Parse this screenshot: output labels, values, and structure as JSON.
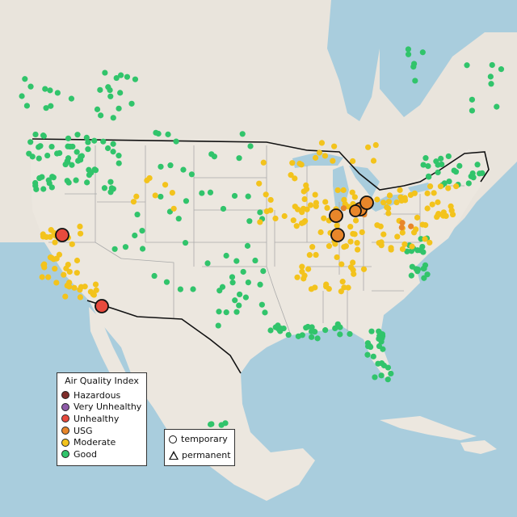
{
  "legend": {
    "title": "Air Quality Index",
    "categories": [
      {
        "label": "Hazardous",
        "color": "#7e2d2a"
      },
      {
        "label": "Very Unhealthy",
        "color": "#8e5ba8"
      },
      {
        "label": "Unhealthy",
        "color": "#e84a3d"
      },
      {
        "label": "USG",
        "color": "#e8862a"
      },
      {
        "label": "Moderate",
        "color": "#f3c31c"
      },
      {
        "label": "Good",
        "color": "#31c46b"
      }
    ]
  },
  "type_legend": {
    "temporary": "temporary",
    "permanent": "permanent"
  }
}
